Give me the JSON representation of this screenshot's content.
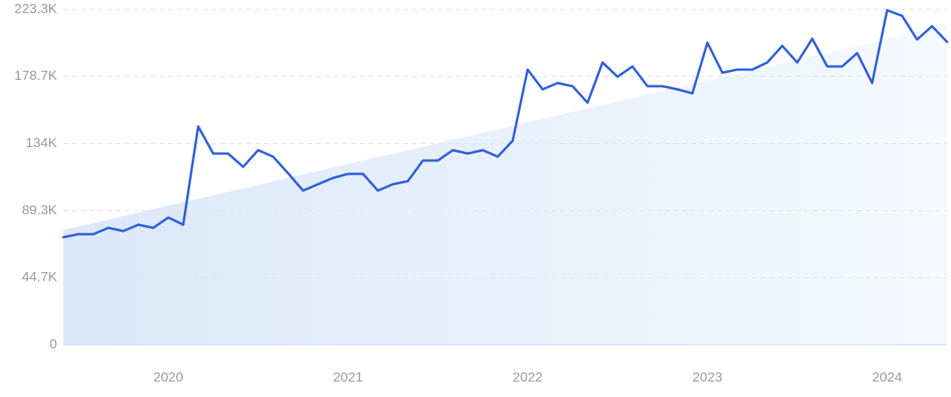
{
  "chart_data": {
    "type": "line",
    "categories": [
      null,
      null,
      null,
      null,
      null,
      null,
      null,
      "2020",
      null,
      null,
      null,
      null,
      null,
      null,
      null,
      null,
      null,
      null,
      null,
      "2021",
      null,
      null,
      null,
      null,
      null,
      null,
      null,
      null,
      null,
      null,
      null,
      "2022",
      null,
      null,
      null,
      null,
      null,
      null,
      null,
      null,
      null,
      null,
      null,
      "2023",
      null,
      null,
      null,
      null,
      null,
      null,
      null,
      null,
      null,
      null,
      null,
      "2024",
      null,
      null,
      null,
      null
    ],
    "values": [
      71600,
      73700,
      73700,
      77900,
      75800,
      80000,
      77900,
      84800,
      80000,
      145400,
      127400,
      127400,
      118500,
      129600,
      125300,
      114300,
      102700,
      106900,
      111100,
      113800,
      113800,
      102700,
      106900,
      109000,
      122700,
      122700,
      129600,
      127400,
      129600,
      125300,
      135900,
      183300,
      170100,
      174300,
      172200,
      161200,
      188000,
      178500,
      185400,
      172200,
      172200,
      170100,
      167500,
      201200,
      181200,
      183300,
      183300,
      188000,
      199100,
      188000,
      203800,
      185400,
      185400,
      194300,
      174300,
      222800,
      219100,
      203300,
      212200,
      201700
    ],
    "color": "#2f5fdc",
    "trend": [
      76400,
      213000
    ],
    "trend_color": "#dbe8fa",
    "ylim": [
      0,
      223300
    ],
    "yticks": [
      0,
      {
        "value": 44700,
        "label": "44.7K"
      },
      {
        "value": 89300,
        "label": "89.3K"
      },
      {
        "value": 134000,
        "label": "134K"
      },
      {
        "value": 178700,
        "label": "178.7K"
      },
      {
        "value": 223300,
        "label": "223.3K"
      }
    ],
    "grid": true
  }
}
